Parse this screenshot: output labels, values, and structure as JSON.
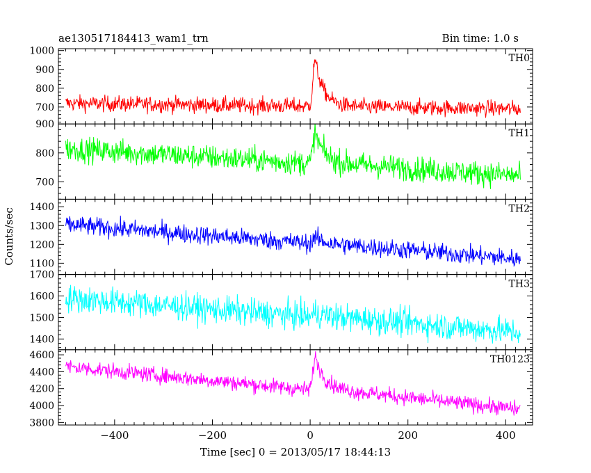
{
  "chart_data": {
    "type": "line",
    "title": "ae130517184413_wam1_trn",
    "bin_time_label": "Bin time: 1.0 s",
    "xlabel": "Time [sec] 0 = 2013/05/17 18:44:13",
    "ylabel": "Counts/sec",
    "xlim": [
      -515,
      455
    ],
    "xticks": [
      -400,
      -200,
      0,
      200,
      400
    ],
    "xtick_labels": [
      "−400",
      "−200",
      "0",
      "200",
      "400"
    ],
    "x_start": -500,
    "x_end": 430,
    "burst_time": 10,
    "panels": [
      {
        "name": "TH0",
        "color": "#ff0000",
        "ylim": [
          610,
          1010
        ],
        "yticks": [
          700,
          800,
          900,
          1000
        ],
        "ytick_labels": [
          "700",
          "800",
          "900",
          "1000"
        ],
        "baseline_start": 720,
        "baseline_end": 690,
        "post_level": 700,
        "burst_peak": 950,
        "noise": 30
      },
      {
        "name": "TH1",
        "color": "#00ff00",
        "ylim": [
          640,
          900
        ],
        "yticks": [
          700,
          800,
          900
        ],
        "ytick_labels": [
          "700",
          "800",
          "900"
        ],
        "baseline_start": 815,
        "baseline_end": 720,
        "post_level": 770,
        "burst_peak": 865,
        "noise": 30
      },
      {
        "name": "TH2",
        "color": "#0000ff",
        "ylim": [
          1040,
          1440
        ],
        "yticks": [
          1100,
          1200,
          1300,
          1400
        ],
        "ytick_labels": [
          "1100",
          "1200",
          "1300",
          "1400"
        ],
        "baseline_start": 1305,
        "baseline_end": 1120,
        "post_level": 1200,
        "burst_peak": 1240,
        "noise": 35
      },
      {
        "name": "TH3",
        "color": "#00ffff",
        "ylim": [
          1350,
          1700
        ],
        "yticks": [
          1400,
          1500,
          1600,
          1700
        ],
        "ytick_labels": [
          "1400",
          "1500",
          "1600",
          "1700"
        ],
        "baseline_start": 1590,
        "baseline_end": 1430,
        "post_level": 1510,
        "burst_peak": 1520,
        "noise": 45
      },
      {
        "name": "TH0123",
        "color": "#ff00ff",
        "ylim": [
          3770,
          4660
        ],
        "yticks": [
          3800,
          4000,
          4200,
          4400,
          4600
        ],
        "ytick_labels": [
          "3800",
          "4000",
          "4200",
          "4400",
          "4600"
        ],
        "baseline_start": 4460,
        "baseline_end": 3950,
        "post_level": 4230,
        "burst_peak": 4560,
        "noise": 65
      }
    ]
  }
}
